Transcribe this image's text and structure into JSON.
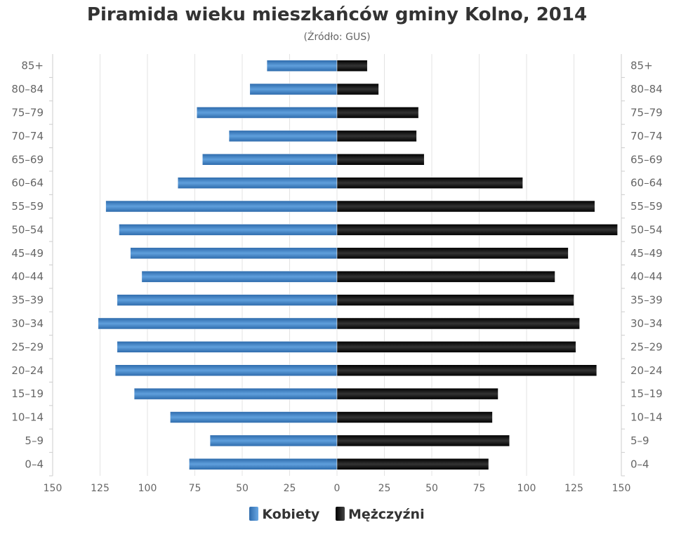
{
  "chart_data": {
    "type": "bar",
    "orientation": "horizontal-pyramid",
    "title": "Piramida wieku mieszkańców gminy Kolno, 2014",
    "subtitle": "(Źródło: GUS)",
    "categories": [
      "85+",
      "80–84",
      "75–79",
      "70–74",
      "65–69",
      "60–64",
      "55–59",
      "50–54",
      "45–49",
      "40–44",
      "35–39",
      "30–34",
      "25–29",
      "20–24",
      "15–19",
      "10–14",
      "5–9",
      "0–4"
    ],
    "series": [
      {
        "name": "Kobiety",
        "color": "#3a7cc0",
        "values": [
          37,
          46,
          74,
          57,
          71,
          84,
          122,
          115,
          109,
          103,
          116,
          126,
          116,
          117,
          107,
          88,
          67,
          78
        ]
      },
      {
        "name": "Mężczyźni",
        "color": "#111111",
        "values": [
          16,
          22,
          43,
          42,
          46,
          98,
          136,
          148,
          122,
          115,
          125,
          128,
          126,
          137,
          85,
          82,
          91,
          80
        ]
      }
    ],
    "xticks": [
      "150",
      "125",
      "100",
      "75",
      "50",
      "25",
      "0",
      "25",
      "50",
      "75",
      "100",
      "125",
      "150"
    ],
    "xlim": [
      -150,
      150
    ],
    "grid": true,
    "legend": "bottom"
  }
}
